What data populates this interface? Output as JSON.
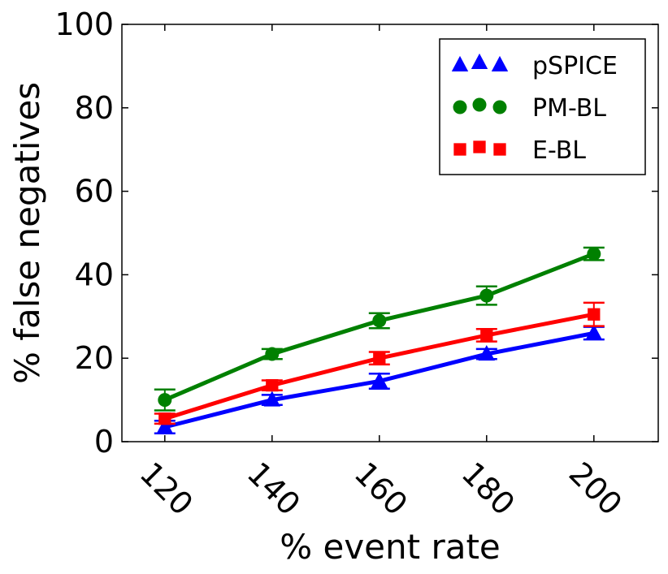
{
  "chart_data": {
    "type": "line",
    "title": "",
    "xlabel": "% event rate",
    "ylabel": "% false negatives",
    "x": [
      120,
      140,
      160,
      180,
      200
    ],
    "x_tick_labels": [
      "120",
      "140",
      "160",
      "180",
      "200"
    ],
    "y_ticks": [
      0,
      20,
      40,
      60,
      80,
      100
    ],
    "y_tick_labels": [
      "0",
      "20",
      "40",
      "60",
      "80",
      "100"
    ],
    "xlim": [
      112,
      212
    ],
    "ylim": [
      0,
      100
    ],
    "grid": false,
    "legend_position": "top-right",
    "series": [
      {
        "name": "pSPICE",
        "color": "#0000ff",
        "marker": "triangle",
        "values": [
          3.5,
          10,
          14.5,
          21,
          26
        ],
        "errors": [
          1.5,
          1.2,
          1.8,
          1.2,
          1.5
        ]
      },
      {
        "name": "PM-BL",
        "color": "#008000",
        "marker": "circle",
        "values": [
          10,
          21,
          29,
          35,
          45
        ],
        "errors": [
          2.5,
          1.2,
          1.8,
          2.2,
          1.5
        ]
      },
      {
        "name": "E-BL",
        "color": "#ff0000",
        "marker": "square",
        "values": [
          5.5,
          13.5,
          20,
          25.5,
          30.5
        ],
        "errors": [
          1.2,
          1.2,
          1.5,
          1.5,
          2.8
        ]
      }
    ]
  }
}
